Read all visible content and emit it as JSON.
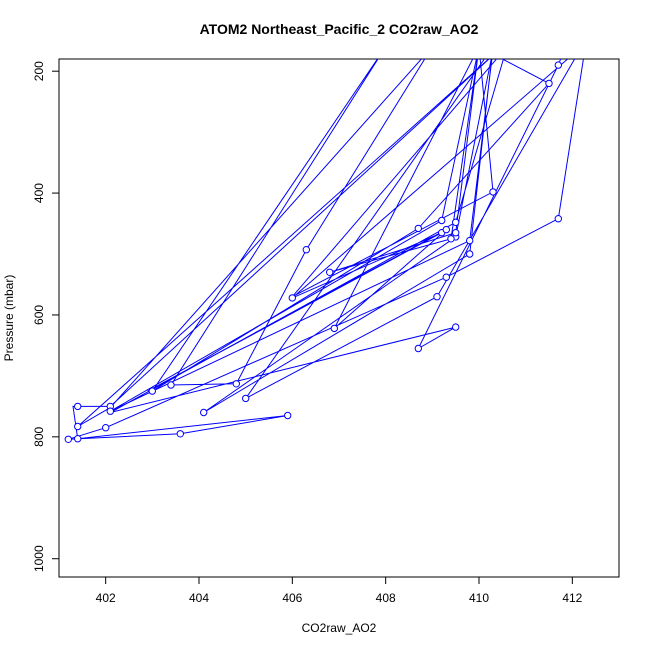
{
  "chart_data": {
    "type": "line",
    "title": "ATOM2 Northeast_Pacific_2 CO2raw_AO2",
    "xlabel": "CO2raw_AO2",
    "ylabel": "Pressure (mbar)",
    "xlim": [
      401.0,
      413.0
    ],
    "ylim": [
      1030,
      180
    ],
    "y_reversed": true,
    "x_ticks": [
      402,
      404,
      406,
      408,
      410,
      412
    ],
    "y_ticks": [
      200,
      400,
      600,
      800,
      1000
    ],
    "x_tick_labels": [
      "402",
      "404",
      "406",
      "408",
      "410",
      "412"
    ],
    "y_tick_labels": [
      "200",
      "400",
      "600",
      "800",
      "1000"
    ],
    "grid": false,
    "legend": "none",
    "line_color": "#0000ff",
    "marker": "open-circle",
    "series": [
      {
        "values": [
          [
            412.3,
            150
          ],
          [
            411.7,
            442
          ],
          [
            409.3,
            538
          ],
          [
            402.0,
            785
          ],
          [
            401.2,
            804
          ],
          [
            401.2,
            804
          ],
          [
            403.6,
            795
          ],
          [
            405.9,
            765
          ],
          [
            405.9,
            765
          ],
          [
            401.4,
            803
          ],
          [
            401.4,
            803
          ],
          [
            401.3,
            750
          ],
          [
            402.1,
            750
          ],
          [
            402.1,
            750
          ],
          [
            410.5,
            160
          ],
          [
            410.5,
            160
          ],
          [
            401.4,
            783
          ],
          [
            402.1,
            752
          ],
          [
            402.1,
            752
          ],
          [
            409.0,
            160
          ],
          [
            409.0,
            160
          ],
          [
            406.3,
            493
          ],
          [
            404.8,
            713
          ],
          [
            404.8,
            713
          ],
          [
            403.4,
            715
          ],
          [
            403.4,
            715
          ],
          [
            408.0,
            160
          ],
          [
            408.0,
            160
          ],
          [
            403.0,
            725
          ],
          [
            403.0,
            725
          ],
          [
            408.7,
            458
          ],
          [
            411.5,
            220
          ],
          [
            411.5,
            220
          ],
          [
            410.0,
            160
          ],
          [
            410.0,
            160
          ],
          [
            409.2,
            445
          ],
          [
            409.2,
            445
          ],
          [
            402.1,
            758
          ],
          [
            402.1,
            758
          ],
          [
            409.8,
            478
          ],
          [
            409.8,
            478
          ],
          [
            410.3,
            165
          ],
          [
            410.3,
            165
          ],
          [
            409.5,
            472
          ],
          [
            409.5,
            472
          ],
          [
            404.1,
            760
          ],
          [
            404.1,
            760
          ],
          [
            409.8,
            500
          ],
          [
            409.8,
            500
          ],
          [
            410.3,
            160
          ],
          [
            410.3,
            160
          ],
          [
            405.0,
            737
          ],
          [
            405.0,
            737
          ],
          [
            409.1,
            570
          ],
          [
            409.1,
            570
          ],
          [
            412.2,
            160
          ],
          [
            412.2,
            160
          ],
          [
            406.0,
            572
          ],
          [
            406.0,
            572
          ],
          [
            409.2,
            465
          ],
          [
            409.2,
            465
          ],
          [
            402.9,
            725
          ],
          [
            402.9,
            725
          ],
          [
            409.3,
            460
          ],
          [
            409.3,
            460
          ],
          [
            406.9,
            622
          ],
          [
            406.9,
            622
          ],
          [
            410.0,
            160
          ],
          [
            410.0,
            160
          ],
          [
            409.5,
            465
          ],
          [
            409.5,
            465
          ],
          [
            406.8,
            530
          ],
          [
            406.8,
            530
          ],
          [
            409.4,
            475
          ],
          [
            409.4,
            475
          ],
          [
            410.0,
            160
          ],
          [
            410.0,
            160
          ],
          [
            410.3,
            398
          ],
          [
            410.3,
            398
          ],
          [
            406.0,
            570
          ],
          [
            406.0,
            570
          ],
          [
            410.6,
            160
          ],
          [
            410.6,
            160
          ],
          [
            409.5,
            448
          ],
          [
            409.5,
            448
          ],
          [
            402.1,
            760
          ],
          [
            402.1,
            760
          ],
          [
            409.5,
            620
          ],
          [
            409.5,
            620
          ],
          [
            408.7,
            655
          ],
          [
            408.7,
            655
          ],
          [
            411.7,
            190
          ],
          [
            411.7,
            190
          ],
          [
            411.9,
            150
          ]
        ],
        "markers": [
          [
            411.7,
            442
          ],
          [
            409.3,
            538
          ],
          [
            402.0,
            785
          ],
          [
            401.2,
            804
          ],
          [
            403.6,
            795
          ],
          [
            405.9,
            765
          ],
          [
            401.4,
            803
          ],
          [
            401.4,
            750
          ],
          [
            402.1,
            750
          ],
          [
            401.4,
            783
          ],
          [
            402.1,
            758
          ],
          [
            406.3,
            493
          ],
          [
            404.8,
            713
          ],
          [
            403.4,
            715
          ],
          [
            403.0,
            725
          ],
          [
            408.7,
            458
          ],
          [
            411.5,
            220
          ],
          [
            409.2,
            445
          ],
          [
            409.8,
            478
          ],
          [
            409.5,
            472
          ],
          [
            404.1,
            760
          ],
          [
            409.8,
            500
          ],
          [
            405.0,
            737
          ],
          [
            409.1,
            570
          ],
          [
            406.0,
            572
          ],
          [
            409.2,
            465
          ],
          [
            409.3,
            460
          ],
          [
            406.9,
            622
          ],
          [
            409.5,
            465
          ],
          [
            406.8,
            530
          ],
          [
            409.4,
            475
          ],
          [
            410.3,
            398
          ],
          [
            409.5,
            448
          ],
          [
            409.5,
            620
          ],
          [
            408.7,
            655
          ],
          [
            411.7,
            190
          ]
        ]
      }
    ]
  }
}
